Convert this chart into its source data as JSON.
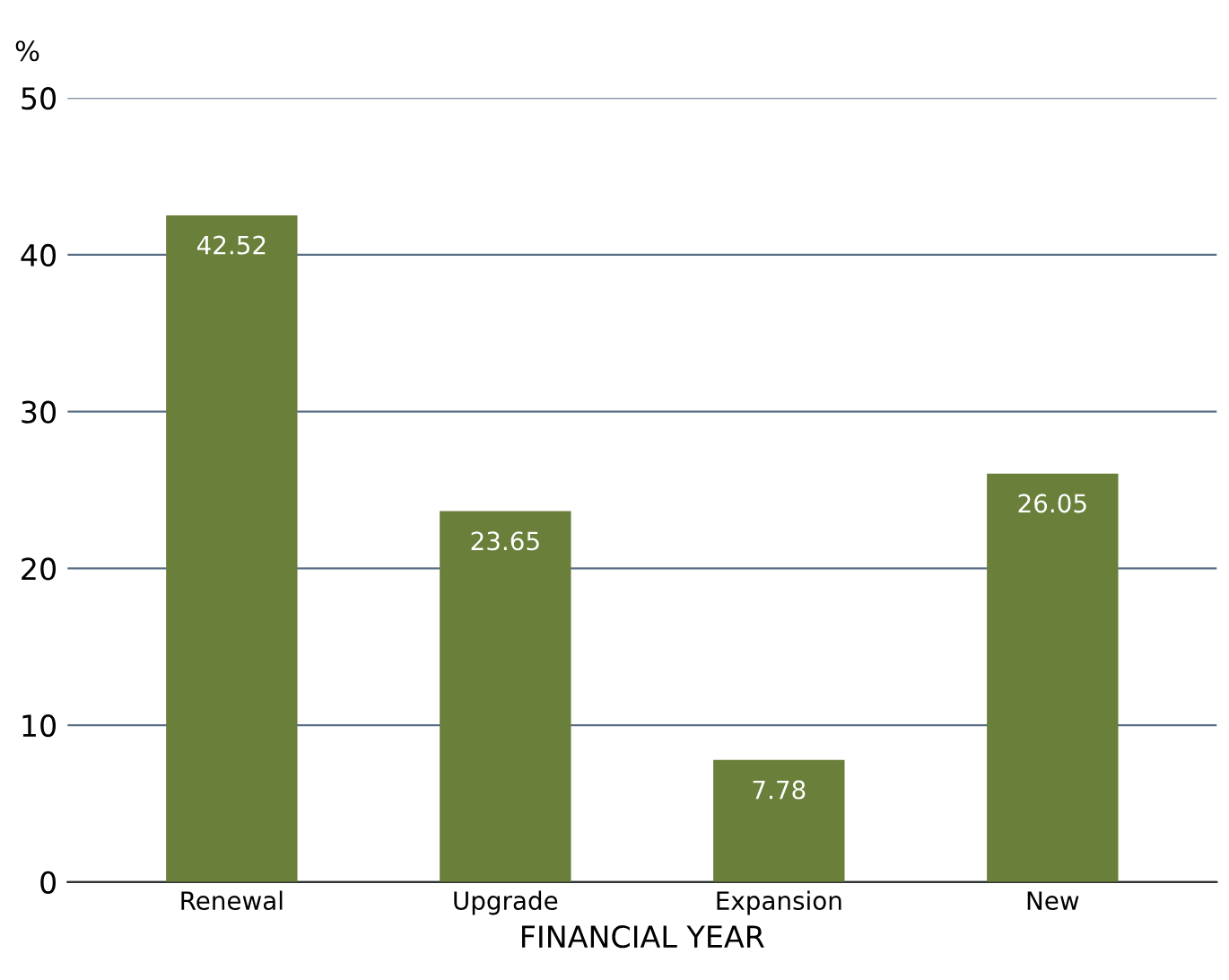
{
  "chart_data": {
    "type": "bar",
    "ylabel": "%",
    "xlabel": "FINANCIAL YEAR",
    "categories": [
      "Renewal",
      "Upgrade",
      "Expansion",
      "New"
    ],
    "values": [
      42.52,
      23.65,
      7.78,
      26.05
    ],
    "color": "#6a7f3a",
    "ylim": [
      0,
      50
    ],
    "yticks": [
      0,
      10,
      20,
      30,
      40,
      50
    ],
    "grid": "y",
    "data_labels": true
  }
}
